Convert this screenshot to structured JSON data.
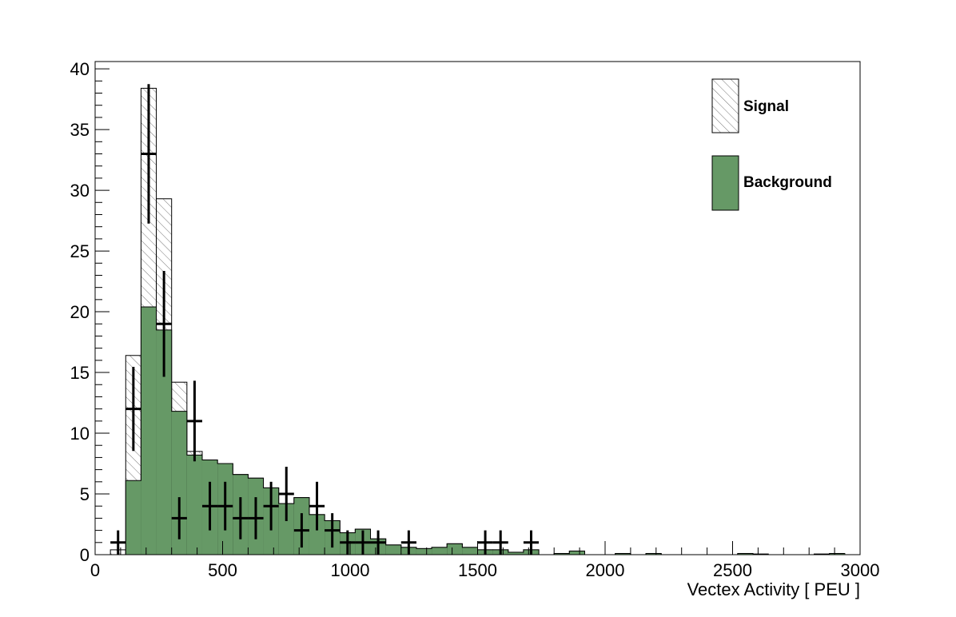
{
  "chart_data": {
    "type": "histogram",
    "title": "",
    "xlabel": "Vectex Activity  [ PEU ]",
    "ylabel": "",
    "xlim": [
      0,
      3000
    ],
    "ylim": [
      0,
      40.6
    ],
    "grid": false,
    "bin_width": 60,
    "first_bin_low": 60,
    "x_ticks": [
      0,
      500,
      1000,
      1500,
      2000,
      2500,
      3000
    ],
    "y_ticks": [
      0,
      5,
      10,
      15,
      20,
      25,
      30,
      35,
      40
    ],
    "legend": {
      "placement": "top-right",
      "entries": [
        {
          "label": "Signal",
          "style": "hatched",
          "color": "#ffffff"
        },
        {
          "label": "Background",
          "style": "filled",
          "color": "#669966"
        }
      ]
    },
    "series": [
      {
        "name": "Background",
        "kind": "filled-histogram",
        "color": "#669966",
        "values": [
          0,
          6.1,
          20.4,
          18.5,
          11.8,
          8.2,
          7.8,
          7.5,
          6.6,
          6.3,
          5.5,
          4.2,
          4.7,
          3.3,
          2.8,
          1.8,
          2.1,
          1.3,
          0.8,
          0.6,
          0.5,
          0.6,
          0.9,
          0.6,
          0.4,
          0.4,
          0.2,
          0.4,
          0,
          0.1,
          0.3,
          0,
          0,
          0.1,
          0,
          0.1,
          0,
          0,
          0,
          0,
          0,
          0.1,
          0.05,
          0,
          0,
          0,
          0.05,
          0.1
        ]
      },
      {
        "name": "Signal",
        "kind": "stacked-total-hatched",
        "color": "#555555",
        "values": [
          0.4,
          16.4,
          38.4,
          29.3,
          14.2,
          8.5,
          7.8,
          7.5,
          6.6,
          6.3,
          5.5,
          4.2,
          4.7,
          3.3,
          2.8,
          1.8,
          2.1,
          1.3,
          0.8,
          0.6,
          0.5,
          0.6,
          0.9,
          0.6,
          0.4,
          0.4,
          0.2,
          0.4,
          0,
          0.1,
          0.3,
          0,
          0,
          0.1,
          0,
          0.1,
          0,
          0,
          0,
          0,
          0,
          0.1,
          0.05,
          0,
          0,
          0,
          0.05,
          0.1
        ]
      },
      {
        "name": "Data",
        "kind": "points-with-errors",
        "color": "#000000",
        "points": [
          {
            "x": 90,
            "y": 1
          },
          {
            "x": 150,
            "y": 12
          },
          {
            "x": 210,
            "y": 33
          },
          {
            "x": 270,
            "y": 19
          },
          {
            "x": 330,
            "y": 3
          },
          {
            "x": 390,
            "y": 11
          },
          {
            "x": 450,
            "y": 4
          },
          {
            "x": 510,
            "y": 4
          },
          {
            "x": 570,
            "y": 3
          },
          {
            "x": 630,
            "y": 3
          },
          {
            "x": 690,
            "y": 4
          },
          {
            "x": 750,
            "y": 5
          },
          {
            "x": 810,
            "y": 2
          },
          {
            "x": 870,
            "y": 4
          },
          {
            "x": 930,
            "y": 2
          },
          {
            "x": 990,
            "y": 1
          },
          {
            "x": 1050,
            "y": 1
          },
          {
            "x": 1110,
            "y": 1
          },
          {
            "x": 1230,
            "y": 1
          },
          {
            "x": 1530,
            "y": 1
          },
          {
            "x": 1590,
            "y": 1
          },
          {
            "x": 1710,
            "y": 1
          }
        ]
      }
    ]
  }
}
